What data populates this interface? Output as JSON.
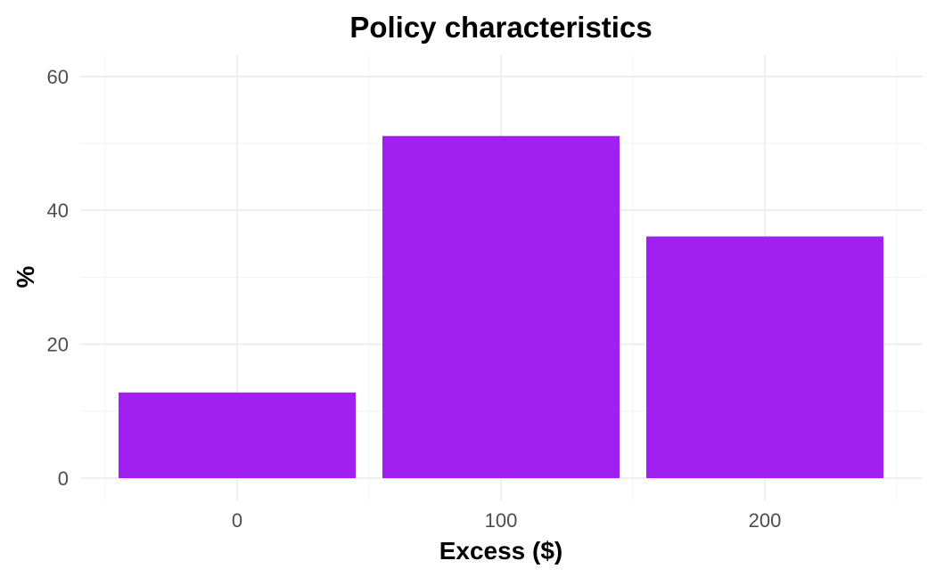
{
  "chart_data": {
    "type": "bar",
    "title": "Policy characteristics",
    "xlabel": "Excess ($)",
    "ylabel": "%",
    "categories": [
      "0",
      "100",
      "200"
    ],
    "values": [
      12.8,
      51.1,
      36.1
    ],
    "ylim": [
      -3.5,
      63
    ],
    "yticks": [
      0,
      20,
      40,
      60
    ],
    "ytick_labels": [
      "0",
      "20",
      "40",
      "60"
    ],
    "grid": true,
    "legend": "none",
    "bar_color": "#a020f0",
    "grid_color": "#ebebeb"
  }
}
